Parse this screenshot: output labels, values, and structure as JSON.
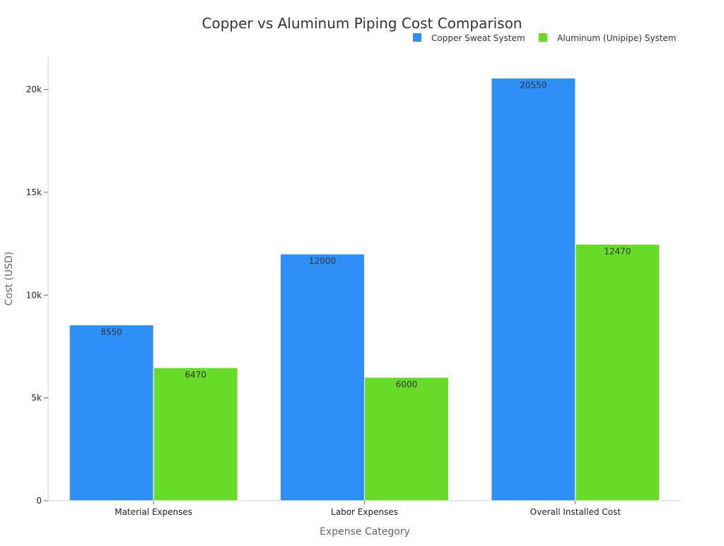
{
  "colors": {
    "background": "#ffffff",
    "axis": "#cccccc",
    "title_text": "#333333",
    "label_text": "#666666",
    "tick_text": "#222222",
    "data_label_text": "#333333"
  },
  "chart_data": {
    "type": "bar",
    "title": "Copper vs Aluminum Piping Cost Comparison",
    "xlabel": "Expense Category",
    "ylabel": "Cost (USD)",
    "categories": [
      "Material Expenses",
      "Labor Expenses",
      "Overall Installed Cost"
    ],
    "series": [
      {
        "name": "Copper Sweat System",
        "color": "#2e90f7",
        "values": [
          8550,
          12000,
          20550
        ]
      },
      {
        "name": "Aluminum (Unipipe) System",
        "color": "#67db27",
        "values": [
          6470,
          6000,
          12470
        ]
      }
    ],
    "ylim": [
      0,
      21600
    ],
    "yticks": [
      {
        "value": 0,
        "label": "0"
      },
      {
        "value": 5000,
        "label": "5k"
      },
      {
        "value": 10000,
        "label": "10k"
      },
      {
        "value": 15000,
        "label": "15k"
      },
      {
        "value": 20000,
        "label": "20k"
      }
    ],
    "legend_position": "top-right",
    "grid": false,
    "show_data_labels": true
  }
}
